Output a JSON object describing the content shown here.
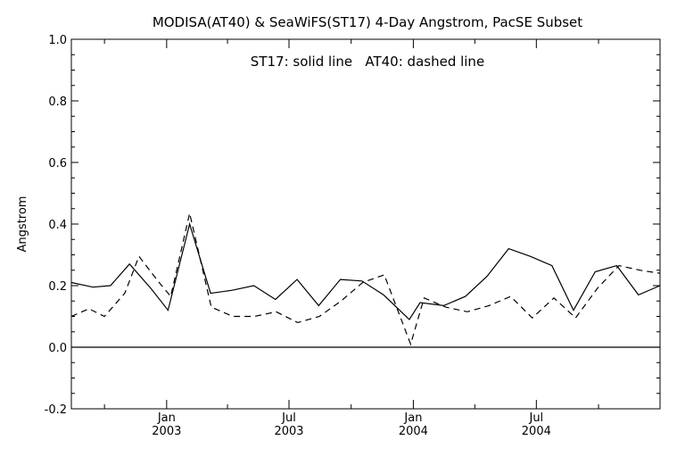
{
  "chart_data": {
    "type": "line",
    "title": "MODISA(AT40) & SeaWiFS(ST17) 4-Day Angstrom, PacSE Subset",
    "annotation": "ST17: solid line   AT40: dashed line",
    "xlabel": "",
    "ylabel": "Angstrom",
    "ylim": [
      -0.2,
      1.0
    ],
    "yticks": [
      "-0.2",
      "0.0",
      "0.2",
      "0.4",
      "0.6",
      "0.8",
      "1.0"
    ],
    "xlim": [
      "2002-08-13",
      "2004-12-31"
    ],
    "xticks": [
      {
        "date": "2003-01-01",
        "month": "Jan",
        "year": "2003"
      },
      {
        "date": "2003-07-01",
        "month": "Jul",
        "year": "2003"
      },
      {
        "date": "2004-01-01",
        "month": "Jan",
        "year": "2004"
      },
      {
        "date": "2004-07-01",
        "month": "Jul",
        "year": "2004"
      }
    ],
    "grid": false,
    "zero_line": true,
    "series": [
      {
        "name": "ST17",
        "style": "solid",
        "color": "#000000",
        "points": [
          [
            "2002-08-13",
            0.21
          ],
          [
            "2002-09-14",
            0.195
          ],
          [
            "2002-10-10",
            0.2
          ],
          [
            "2002-11-07",
            0.27
          ],
          [
            "2002-12-09",
            0.19
          ],
          [
            "2003-01-03",
            0.12
          ],
          [
            "2003-02-04",
            0.4
          ],
          [
            "2003-03-07",
            0.175
          ],
          [
            "2003-04-08",
            0.185
          ],
          [
            "2003-05-10",
            0.2
          ],
          [
            "2003-06-11",
            0.155
          ],
          [
            "2003-07-13",
            0.22
          ],
          [
            "2003-08-14",
            0.135
          ],
          [
            "2003-09-15",
            0.22
          ],
          [
            "2003-10-17",
            0.215
          ],
          [
            "2003-11-18",
            0.17
          ],
          [
            "2003-12-26",
            0.09
          ],
          [
            "2004-01-11",
            0.145
          ],
          [
            "2004-02-15",
            0.135
          ],
          [
            "2004-03-18",
            0.165
          ],
          [
            "2004-04-19",
            0.23
          ],
          [
            "2004-05-21",
            0.32
          ],
          [
            "2004-06-22",
            0.295
          ],
          [
            "2004-07-24",
            0.265
          ],
          [
            "2004-08-25",
            0.12
          ],
          [
            "2004-09-26",
            0.245
          ],
          [
            "2004-10-28",
            0.265
          ],
          [
            "2004-11-29",
            0.17
          ],
          [
            "2004-12-31",
            0.2
          ]
        ]
      },
      {
        "name": "AT40",
        "style": "dashed",
        "color": "#000000",
        "points": [
          [
            "2002-08-13",
            0.1
          ],
          [
            "2002-09-08",
            0.125
          ],
          [
            "2002-10-01",
            0.1
          ],
          [
            "2002-10-31",
            0.175
          ],
          [
            "2002-11-21",
            0.295
          ],
          [
            "2002-12-19",
            0.215
          ],
          [
            "2003-01-07",
            0.165
          ],
          [
            "2003-02-04",
            0.435
          ],
          [
            "2003-03-08",
            0.13
          ],
          [
            "2003-04-09",
            0.1
          ],
          [
            "2003-05-11",
            0.1
          ],
          [
            "2003-06-12",
            0.115
          ],
          [
            "2003-07-14",
            0.08
          ],
          [
            "2003-08-15",
            0.1
          ],
          [
            "2003-09-16",
            0.15
          ],
          [
            "2003-10-18",
            0.21
          ],
          [
            "2003-11-19",
            0.235
          ],
          [
            "2003-12-28",
            0.01
          ],
          [
            "2004-01-17",
            0.16
          ],
          [
            "2004-02-18",
            0.13
          ],
          [
            "2004-03-21",
            0.115
          ],
          [
            "2004-04-22",
            0.135
          ],
          [
            "2004-05-24",
            0.165
          ],
          [
            "2004-06-25",
            0.095
          ],
          [
            "2004-07-27",
            0.16
          ],
          [
            "2004-08-28",
            0.095
          ],
          [
            "2004-09-29",
            0.19
          ],
          [
            "2004-10-31",
            0.265
          ],
          [
            "2004-12-02",
            0.25
          ],
          [
            "2004-12-31",
            0.24
          ]
        ]
      }
    ]
  }
}
